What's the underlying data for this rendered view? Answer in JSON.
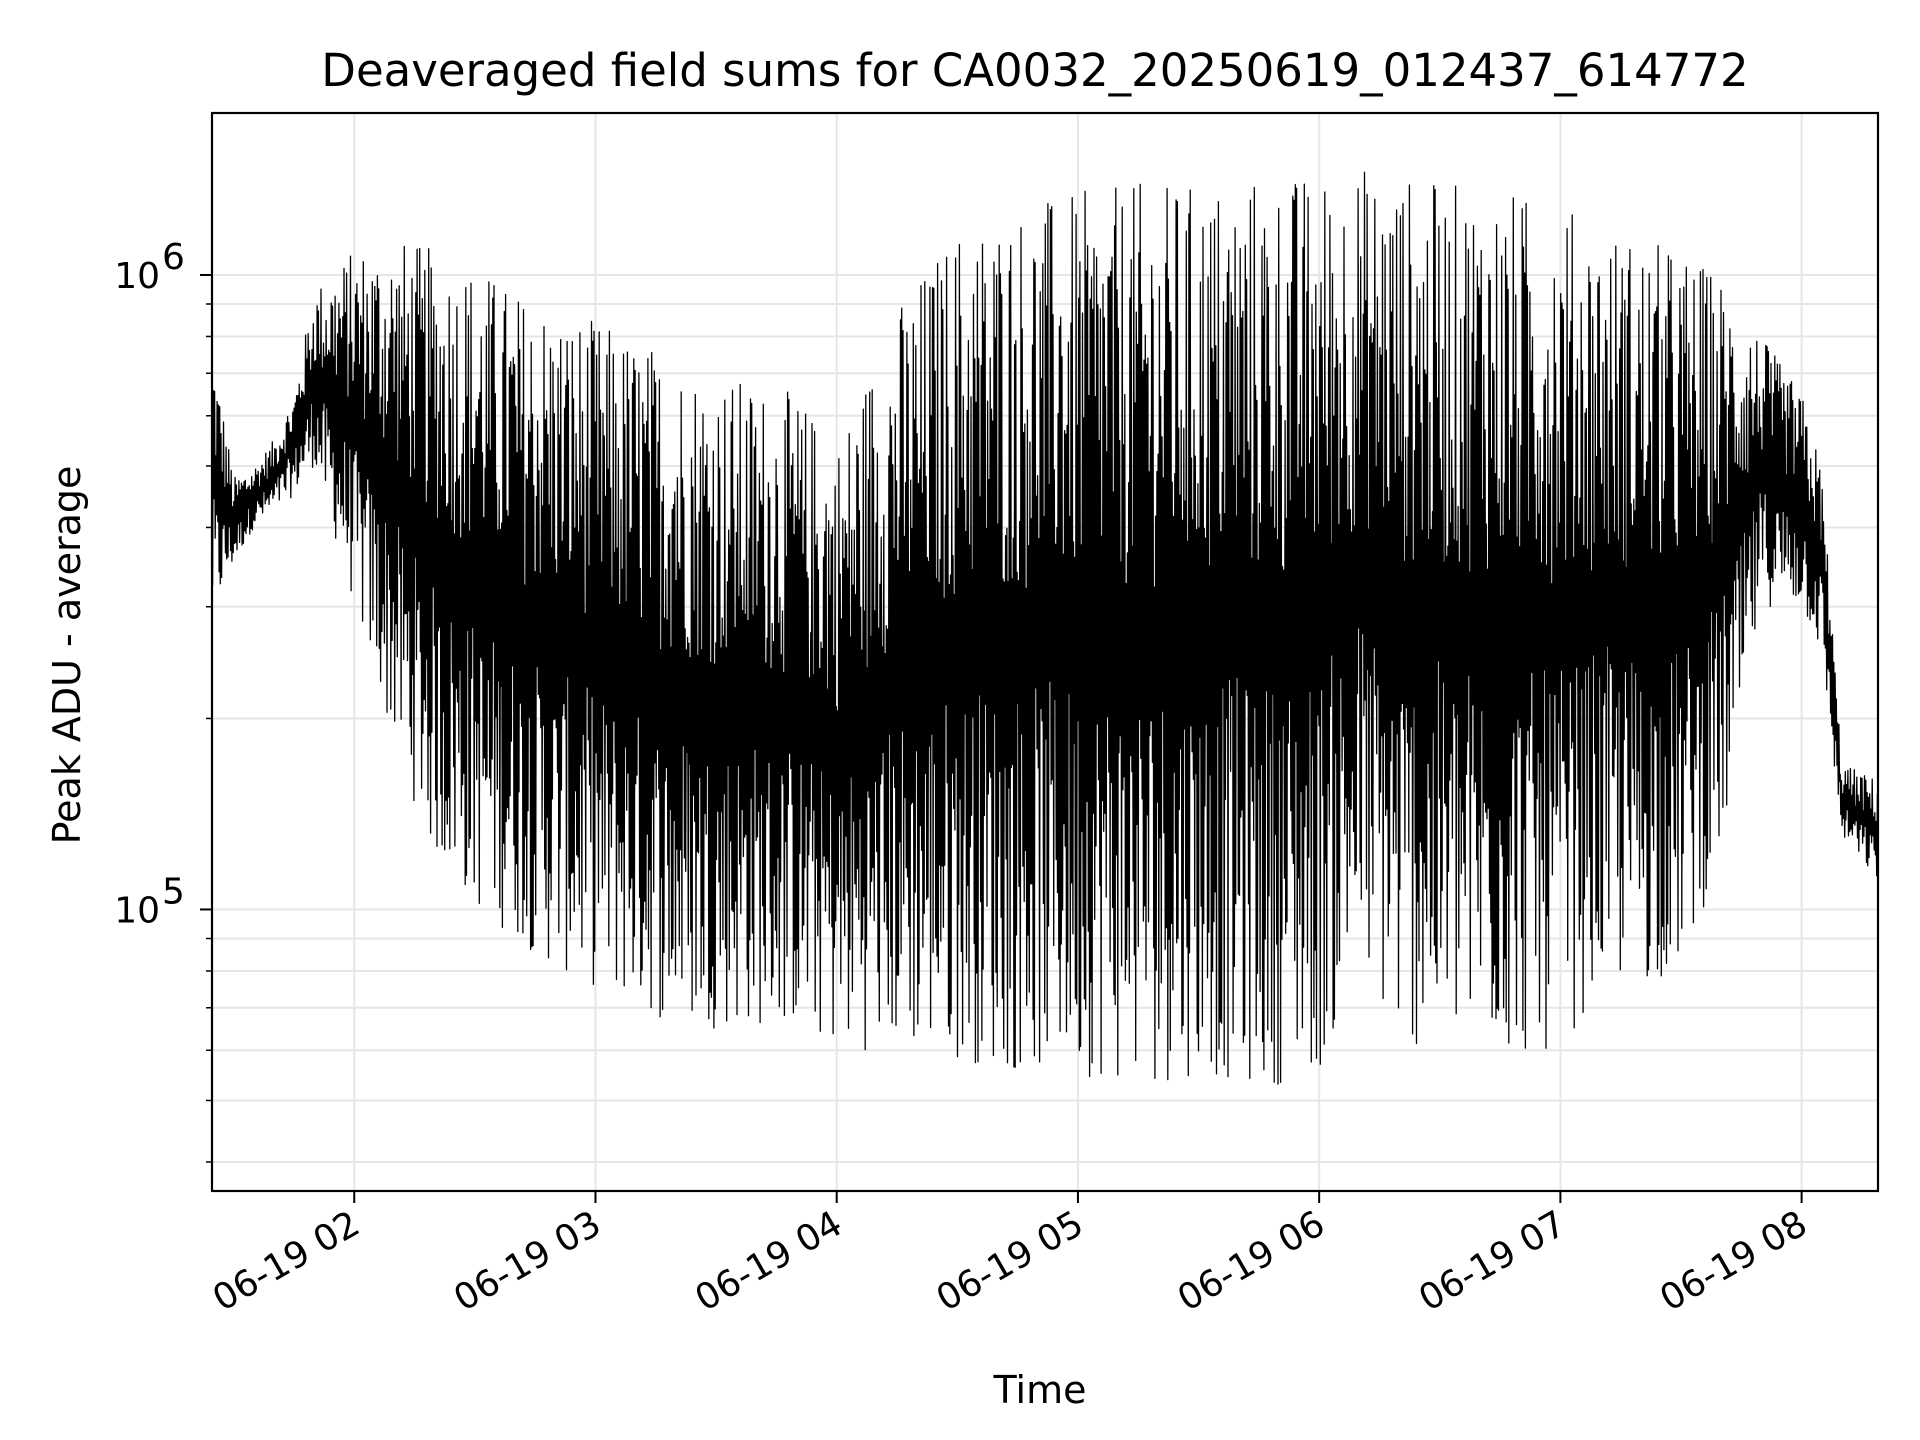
{
  "chart_data": {
    "type": "line",
    "title": "Deaveraged field sums for CA0032_20250619_012437_614772",
    "xlabel": "Time",
    "ylabel": "Peak ADU - average",
    "yscale": "log",
    "ylim": [
      36000,
      1800000
    ],
    "xlim": [
      "2025-06-19 01:24:37",
      "2025-06-19 08:19:00"
    ],
    "grid": true,
    "line_color": "#000000",
    "x_ticks": [
      {
        "value": "2025-06-19 02:00",
        "label": "06-19 02"
      },
      {
        "value": "2025-06-19 03:00",
        "label": "06-19 03"
      },
      {
        "value": "2025-06-19 04:00",
        "label": "06-19 04"
      },
      {
        "value": "2025-06-19 05:00",
        "label": "06-19 05"
      },
      {
        "value": "2025-06-19 06:00",
        "label": "06-19 06"
      },
      {
        "value": "2025-06-19 07:00",
        "label": "06-19 07"
      },
      {
        "value": "2025-06-19 08:00",
        "label": "06-19 08"
      }
    ],
    "y_ticks": [
      {
        "value": 100000,
        "base": "10",
        "exp": "5"
      },
      {
        "value": 1000000,
        "base": "10",
        "exp": "6"
      }
    ],
    "series": [
      {
        "x": [
          "2025-06-19 01:24:37",
          "2025-06-19 01:30",
          "2025-06-19 01:35",
          "2025-06-19 01:40",
          "2025-06-19 01:45",
          "2025-06-19 01:50",
          "2025-06-19 02:00",
          "2025-06-19 02:10",
          "2025-06-19 02:20",
          "2025-06-19 02:30",
          "2025-06-19 02:40",
          "2025-06-19 02:50",
          "2025-06-19 03:00",
          "2025-06-19 03:10",
          "2025-06-19 03:20",
          "2025-06-19 03:30",
          "2025-06-19 03:40",
          "2025-06-19 03:50",
          "2025-06-19 04:00",
          "2025-06-19 04:15",
          "2025-06-19 04:30",
          "2025-06-19 04:45",
          "2025-06-19 05:00",
          "2025-06-19 05:15",
          "2025-06-19 05:30",
          "2025-06-19 05:45",
          "2025-06-19 06:00",
          "2025-06-19 06:10",
          "2025-06-19 06:20",
          "2025-06-19 06:30",
          "2025-06-19 06:40",
          "2025-06-19 06:50",
          "2025-06-19 07:00",
          "2025-06-19 07:10",
          "2025-06-19 07:20",
          "2025-06-19 07:30",
          "2025-06-19 07:40",
          "2025-06-19 07:50",
          "2025-06-19 08:00",
          "2025-06-19 08:05",
          "2025-06-19 08:10",
          "2025-06-19 08:19"
        ],
        "low": [
          280000,
          350000,
          400000,
          420000,
          450000,
          500000,
          300000,
          180000,
          120000,
          100000,
          90000,
          80000,
          75000,
          70000,
          65000,
          65000,
          65000,
          65000,
          60000,
          60000,
          58000,
          55000,
          55000,
          52000,
          55000,
          52000,
          55000,
          80000,
          60000,
          60000,
          60000,
          58000,
          60000,
          75000,
          75000,
          80000,
          120000,
          300000,
          300000,
          250000,
          130000,
          110000
        ],
        "high": [
          800000,
          480000,
          500000,
          550000,
          650000,
          950000,
          1100000,
          1150000,
          1100000,
          1050000,
          950000,
          900000,
          850000,
          800000,
          750000,
          700000,
          680000,
          650000,
          550000,
          900000,
          1200000,
          1300000,
          1350000,
          1400000,
          1400000,
          1450000,
          1450000,
          1500000,
          1450000,
          1400000,
          1400000,
          1350000,
          1300000,
          1200000,
          1150000,
          1100000,
          1000000,
          800000,
          650000,
          500000,
          170000,
          160000
        ]
      }
    ]
  }
}
